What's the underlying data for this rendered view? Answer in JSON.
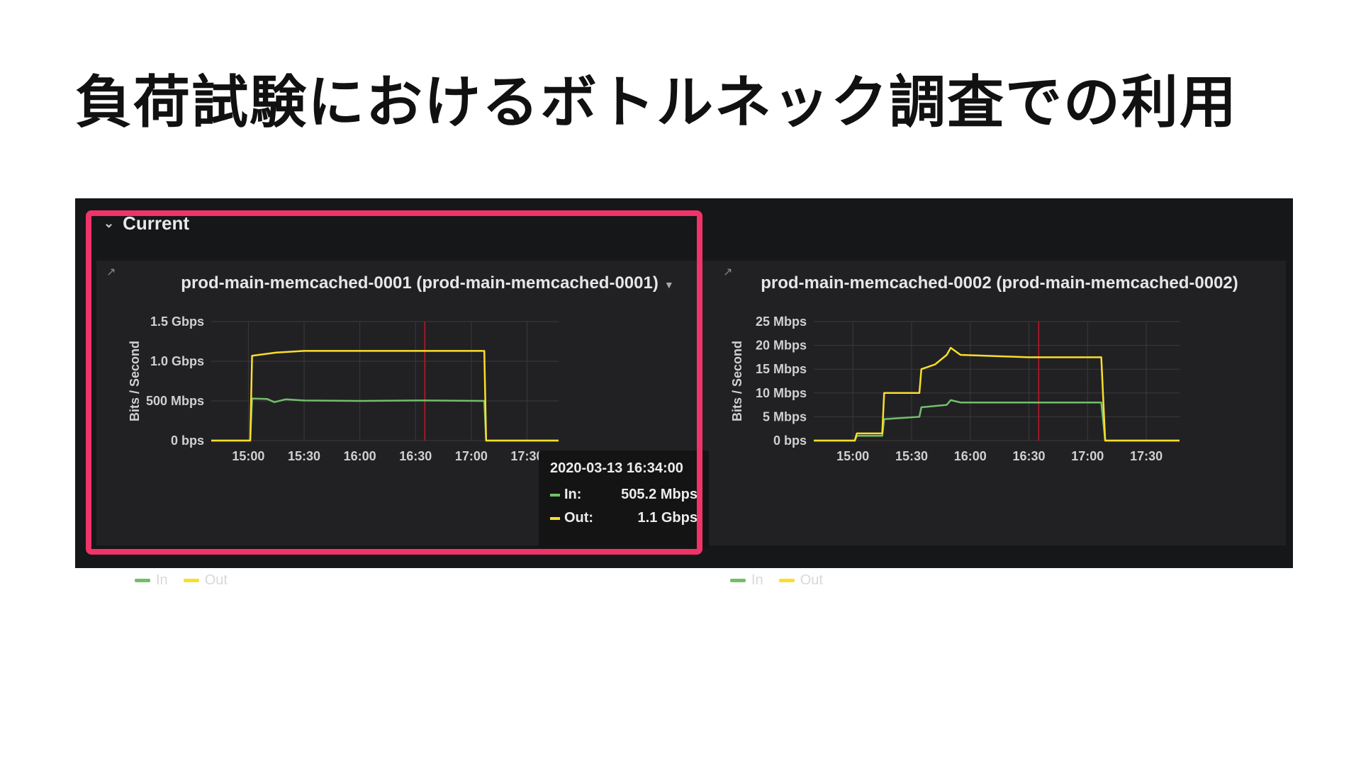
{
  "slide": {
    "title": "負荷試験におけるボトルネック調査での利用"
  },
  "row": {
    "label": "Current"
  },
  "colors": {
    "in": "#73bf69",
    "out": "#fade2a",
    "highlight": "#f03369",
    "cursor": "#c4162a"
  },
  "panels": [
    {
      "title": "prod-main-memcached-0001 (prod-main-memcached-0001)",
      "y_axis_label": "Bits / Second",
      "legend": {
        "in": "In",
        "out": "Out"
      },
      "tooltip": {
        "time": "2020-03-13 16:34:00",
        "in_label": "In:",
        "in_value": "505.2 Mbps",
        "out_label": "Out:",
        "out_value": "1.1 Gbps"
      }
    },
    {
      "title": "prod-main-memcached-0002 (prod-main-memcached-0002)",
      "y_axis_label": "Bits / Second",
      "legend": {
        "in": "In",
        "out": "Out"
      }
    }
  ],
  "chart_data": [
    {
      "type": "line",
      "ylabel": "Bits / Second",
      "x_ticks": [
        "15:00",
        "15:30",
        "16:00",
        "16:30",
        "17:00",
        "17:30"
      ],
      "y_ticks": [
        "0 bps",
        "500 Mbps",
        "1.0 Gbps",
        "1.5 Gbps"
      ],
      "xlim": [
        "14:40",
        "17:47"
      ],
      "ylim_mbps": [
        0,
        1500
      ],
      "cursor": "16:35",
      "series": [
        {
          "name": "In",
          "points": [
            [
              "14:40",
              0
            ],
            [
              "15:01",
              0
            ],
            [
              "15:02",
              530
            ],
            [
              "15:10",
              525
            ],
            [
              "15:14",
              485
            ],
            [
              "15:20",
              520
            ],
            [
              "15:30",
              505
            ],
            [
              "16:00",
              500
            ],
            [
              "16:30",
              505
            ],
            [
              "16:35",
              505
            ],
            [
              "17:07",
              500
            ],
            [
              "17:08",
              0
            ],
            [
              "17:47",
              0
            ]
          ]
        },
        {
          "name": "Out",
          "points": [
            [
              "14:40",
              0
            ],
            [
              "15:01",
              0
            ],
            [
              "15:02",
              1070
            ],
            [
              "15:15",
              1110
            ],
            [
              "15:30",
              1130
            ],
            [
              "16:00",
              1130
            ],
            [
              "16:30",
              1130
            ],
            [
              "17:07",
              1130
            ],
            [
              "17:08",
              0
            ],
            [
              "17:47",
              0
            ]
          ]
        }
      ]
    },
    {
      "type": "line",
      "ylabel": "Bits / Second",
      "x_ticks": [
        "15:00",
        "15:30",
        "16:00",
        "16:30",
        "17:00",
        "17:30"
      ],
      "y_ticks": [
        "0 bps",
        "5 Mbps",
        "10 Mbps",
        "15 Mbps",
        "20 Mbps",
        "25 Mbps"
      ],
      "xlim": [
        "14:40",
        "17:47"
      ],
      "ylim_mbps": [
        0,
        25
      ],
      "cursor": "16:35",
      "series": [
        {
          "name": "In",
          "points": [
            [
              "14:40",
              0
            ],
            [
              "15:01",
              0
            ],
            [
              "15:02",
              1
            ],
            [
              "15:15",
              1
            ],
            [
              "15:16",
              4.5
            ],
            [
              "15:34",
              5
            ],
            [
              "15:35",
              7
            ],
            [
              "15:48",
              7.5
            ],
            [
              "15:50",
              8.5
            ],
            [
              "15:55",
              8
            ],
            [
              "16:30",
              8
            ],
            [
              "17:07",
              8
            ],
            [
              "17:09",
              0
            ],
            [
              "17:47",
              0
            ]
          ]
        },
        {
          "name": "Out",
          "points": [
            [
              "14:40",
              0
            ],
            [
              "15:01",
              0
            ],
            [
              "15:02",
              1.5
            ],
            [
              "15:15",
              1.5
            ],
            [
              "15:16",
              10
            ],
            [
              "15:34",
              10
            ],
            [
              "15:35",
              15
            ],
            [
              "15:42",
              16
            ],
            [
              "15:48",
              18
            ],
            [
              "15:50",
              19.5
            ],
            [
              "15:55",
              18
            ],
            [
              "16:30",
              17.5
            ],
            [
              "17:07",
              17.5
            ],
            [
              "17:09",
              0
            ],
            [
              "17:47",
              0
            ]
          ]
        }
      ]
    }
  ]
}
